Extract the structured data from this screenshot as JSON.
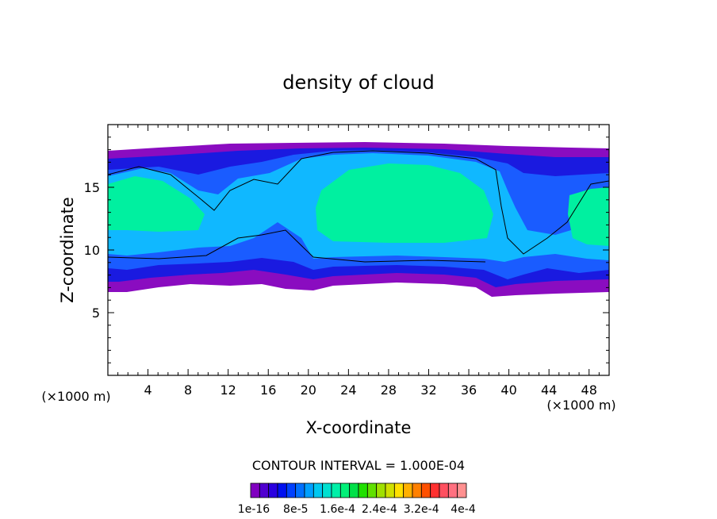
{
  "chart_data": {
    "type": "heatmap",
    "title": "density of cloud",
    "xlabel": "X-coordinate",
    "ylabel": "Z-coordinate",
    "x_unit": "(×1000 m)",
    "z_unit": "(×1000 m)",
    "xlim": [
      0,
      50
    ],
    "ylim": [
      0,
      20
    ],
    "x_ticks": [
      4,
      8,
      12,
      16,
      20,
      24,
      28,
      32,
      36,
      40,
      44,
      48
    ],
    "y_ticks": [
      5,
      10,
      15
    ],
    "contour_interval": "CONTOUR INTERVAL = 1.000E-04",
    "colorbar": {
      "labels": [
        "1e-16",
        "8e-5",
        "1.6e-4",
        "2.4e-4",
        "3.2e-4",
        "4e-4"
      ],
      "colors": [
        "#8000c0",
        "#5000d0",
        "#2a00e0",
        "#0010f0",
        "#0040ff",
        "#0070ff",
        "#00a0ff",
        "#00c8f0",
        "#00e0d0",
        "#00f0a8",
        "#00f078",
        "#00e048",
        "#20e000",
        "#60e000",
        "#a0e000",
        "#d0e000",
        "#ffe000",
        "#ffb000",
        "#ff8000",
        "#ff5000",
        "#ff3030",
        "#ff5060",
        "#ff7080",
        "#ff9090"
      ]
    },
    "region_colors": {
      "outer": "#8a0cc0",
      "edge": "#1a1ae0",
      "mid": "#1a5cff",
      "inner": "#10b8ff",
      "core": "#00f0a0"
    }
  }
}
